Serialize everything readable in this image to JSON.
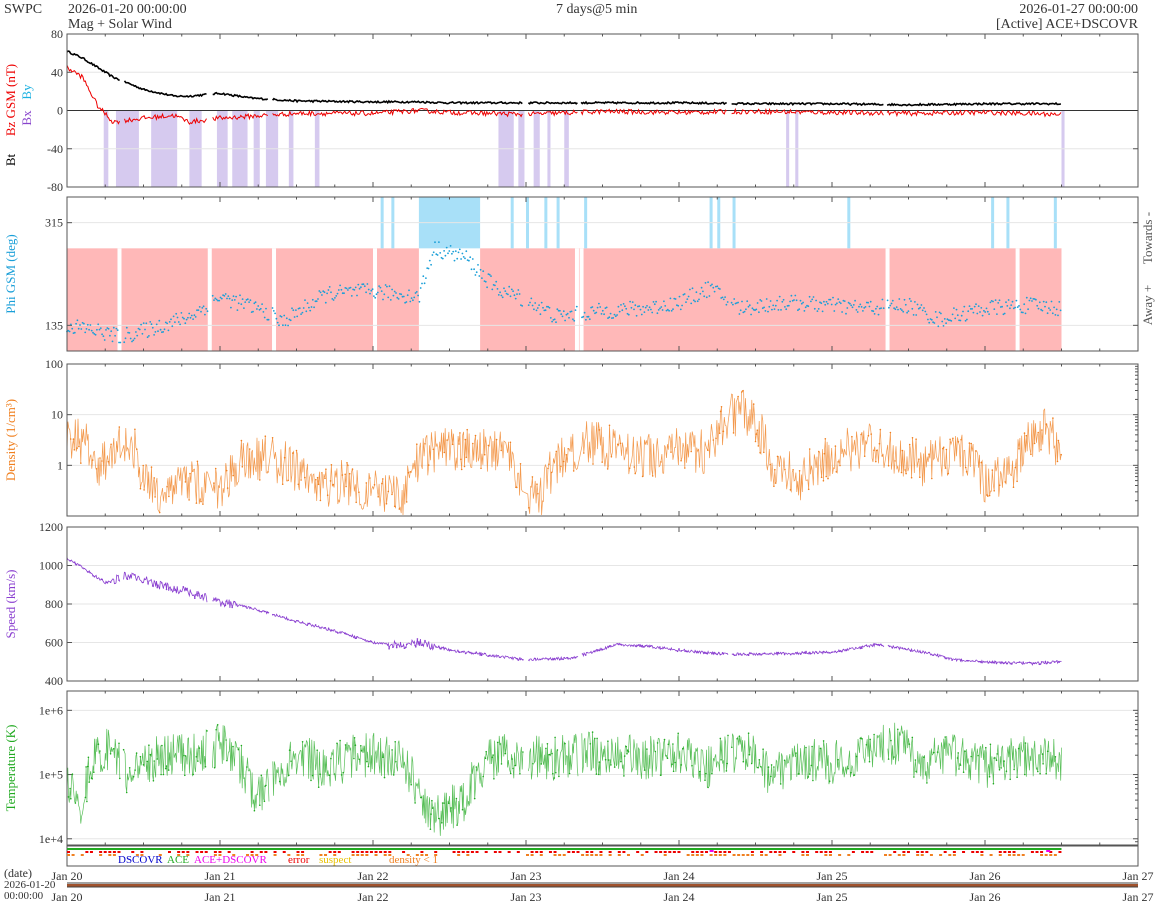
{
  "header": {
    "org": "SWPC",
    "start_time": "2026-01-20 00:00:00",
    "subtitle": "Mag + Solar Wind",
    "span": "7 days@5 min",
    "end_time": "2026-01-27 00:00:00",
    "source": "[Active] ACE+DSCOVR"
  },
  "colors": {
    "bt": "#000000",
    "bz": "#ee0000",
    "by": "#1ab0e0",
    "bx": "#8844cc",
    "phi": "#1a9fd8",
    "density": "#f08020",
    "speed": "#8a3fd0",
    "temperature": "#22aa22",
    "bz_south_band": "#c8b8ea",
    "toward_band": "#a8e0f8",
    "away_band": "#ffb8b8"
  },
  "chart_data": [
    {
      "type": "line",
      "panel": "magnetic-field",
      "ylabel_parts": [
        "Bt",
        "Bz GSM (nT)",
        "Bx",
        "By"
      ],
      "ylim": [
        -80,
        80
      ],
      "yticks": [
        "80",
        "40",
        "0",
        "-40",
        "-80"
      ],
      "series": [
        {
          "name": "Bt",
          "x_days": [
            0,
            0.1,
            0.3,
            0.5,
            0.7,
            0.8,
            1.0,
            1.2,
            1.5,
            2.0,
            2.3,
            2.5,
            3.0,
            3.5,
            4.0,
            4.5,
            5.0,
            5.5,
            6.0,
            6.5
          ],
          "values": [
            62,
            55,
            35,
            22,
            15,
            15,
            18,
            13,
            10,
            9,
            9,
            8,
            8,
            8,
            8,
            7,
            7,
            6,
            7,
            7
          ]
        },
        {
          "name": "Bz GSM",
          "x_days": [
            0,
            0.1,
            0.2,
            0.3,
            0.5,
            0.7,
            0.8,
            1.0,
            1.2,
            1.5,
            2.0,
            2.3,
            2.5,
            3.0,
            3.5,
            4.0,
            4.5,
            5.0,
            5.5,
            6.0,
            6.5
          ],
          "values": [
            45,
            35,
            5,
            -12,
            -8,
            -5,
            -12,
            -8,
            -6,
            -3,
            -3,
            0,
            -2,
            -4,
            -1,
            -2,
            -1,
            -2,
            -3,
            -2,
            -4
          ]
        }
      ]
    },
    {
      "type": "scatter",
      "panel": "phi",
      "ylabel": "Phi GSM (deg)",
      "right_labels": [
        "Towards -",
        "Away +"
      ],
      "ylim": [
        90,
        360
      ],
      "yticks": [
        "315",
        "135"
      ],
      "series": [
        {
          "name": "Phi GSM",
          "x_days": [
            0,
            0.2,
            0.35,
            0.5,
            0.8,
            1.0,
            1.3,
            1.4,
            1.7,
            2.0,
            2.3,
            2.4,
            2.6,
            2.8,
            3.0,
            3.2,
            3.5,
            3.8,
            4.0,
            4.2,
            4.4,
            4.7,
            5.0,
            5.2,
            5.5,
            5.7,
            6.0,
            6.3,
            6.5
          ],
          "values": [
            135,
            125,
            115,
            125,
            150,
            185,
            160,
            140,
            190,
            195,
            185,
            270,
            255,
            200,
            180,
            150,
            160,
            165,
            175,
            200,
            165,
            175,
            170,
            165,
            170,
            145,
            165,
            170,
            165
          ]
        }
      ],
      "polarity_bands": [
        {
          "start": 0.0,
          "end": 2.3,
          "polarity": "away"
        },
        {
          "start": 2.3,
          "end": 2.7,
          "polarity": "toward"
        },
        {
          "start": 2.7,
          "end": 6.5,
          "polarity": "away"
        }
      ]
    },
    {
      "type": "line",
      "panel": "density",
      "ylabel": "Density (1/cm³)",
      "scale": "log",
      "ylim": [
        0.1,
        100
      ],
      "yticks": [
        "100",
        "10",
        "1"
      ],
      "series": [
        {
          "name": "Density",
          "x_days": [
            0,
            0.1,
            0.2,
            0.4,
            0.5,
            0.6,
            0.8,
            1.0,
            1.2,
            1.4,
            1.6,
            1.8,
            2.0,
            2.2,
            2.4,
            2.6,
            2.8,
            3.0,
            3.1,
            3.3,
            3.4,
            3.6,
            3.8,
            4.0,
            4.2,
            4.4,
            4.6,
            4.8,
            5.0,
            5.2,
            5.4,
            5.6,
            5.8,
            6.0,
            6.2,
            6.4,
            6.5
          ],
          "values": [
            4,
            3,
            0.6,
            3,
            0.4,
            0.3,
            0.5,
            0.3,
            1.5,
            1.2,
            0.3,
            0.5,
            0.3,
            0.2,
            2,
            2,
            2,
            0.3,
            0.2,
            2,
            3,
            2,
            1.5,
            2,
            1.8,
            12,
            1,
            0.5,
            1.5,
            2.5,
            1.8,
            1,
            2,
            0.4,
            1,
            5,
            0.8
          ]
        }
      ]
    },
    {
      "type": "line",
      "panel": "speed",
      "ylabel": "Speed (km/s)",
      "ylim": [
        400,
        1200
      ],
      "yticks": [
        "1200",
        "1000",
        "800",
        "600",
        "400"
      ],
      "series": [
        {
          "name": "Speed",
          "x_days": [
            0,
            0.1,
            0.25,
            0.4,
            0.6,
            0.8,
            1.0,
            1.2,
            1.5,
            1.8,
            2.0,
            2.2,
            2.3,
            2.5,
            2.8,
            3.0,
            3.3,
            3.6,
            3.8,
            4.0,
            4.3,
            4.6,
            5.0,
            5.3,
            5.6,
            5.8,
            6.0,
            6.3,
            6.5
          ],
          "values": [
            1040,
            990,
            910,
            950,
            900,
            860,
            810,
            780,
            710,
            650,
            600,
            580,
            600,
            560,
            530,
            510,
            520,
            590,
            580,
            560,
            540,
            540,
            550,
            590,
            550,
            510,
            500,
            490,
            500
          ]
        }
      ]
    },
    {
      "type": "line",
      "panel": "temperature",
      "ylabel": "Temperature (K)",
      "scale": "log",
      "ylim": [
        8000,
        2000000
      ],
      "yticks": [
        "1e+6",
        "1e+5",
        "1e+4"
      ],
      "series": [
        {
          "name": "Temperature",
          "x_days": [
            0,
            0.1,
            0.2,
            0.3,
            0.4,
            0.6,
            0.8,
            1.0,
            1.2,
            1.3,
            1.5,
            1.7,
            1.9,
            2.0,
            2.2,
            2.3,
            2.4,
            2.6,
            2.8,
            3.0,
            3.2,
            3.4,
            3.6,
            3.8,
            4.0,
            4.2,
            4.4,
            4.6,
            4.8,
            5.0,
            5.2,
            5.4,
            5.6,
            5.8,
            6.0,
            6.2,
            6.4,
            6.5
          ],
          "values": [
            80000,
            30000,
            200000,
            250000,
            60000,
            200000,
            200000,
            300000,
            60000,
            50000,
            200000,
            120000,
            200000,
            200000,
            150000,
            40000,
            20000,
            40000,
            200000,
            180000,
            180000,
            220000,
            200000,
            180000,
            200000,
            130000,
            250000,
            100000,
            180000,
            150000,
            200000,
            300000,
            150000,
            200000,
            130000,
            180000,
            170000,
            150000
          ]
        }
      ]
    }
  ],
  "status_legend": [
    "DSCOVR",
    "ACE",
    "ACE+DSCOVR",
    "error",
    "suspect",
    "density < 1"
  ],
  "status_colors": [
    "#0000cc",
    "#22aa22",
    "#ee00ee",
    "#ee0000",
    "#e8c000",
    "#f08020"
  ],
  "x_axis": {
    "ticks": [
      "Jan 20",
      "Jan 21",
      "Jan 22",
      "Jan 23",
      "Jan 24",
      "Jan 25",
      "Jan 26",
      "Jan 27"
    ],
    "date_label": "(date)",
    "overview_start": "2026-01-20",
    "overview_time": "00:00:00"
  }
}
